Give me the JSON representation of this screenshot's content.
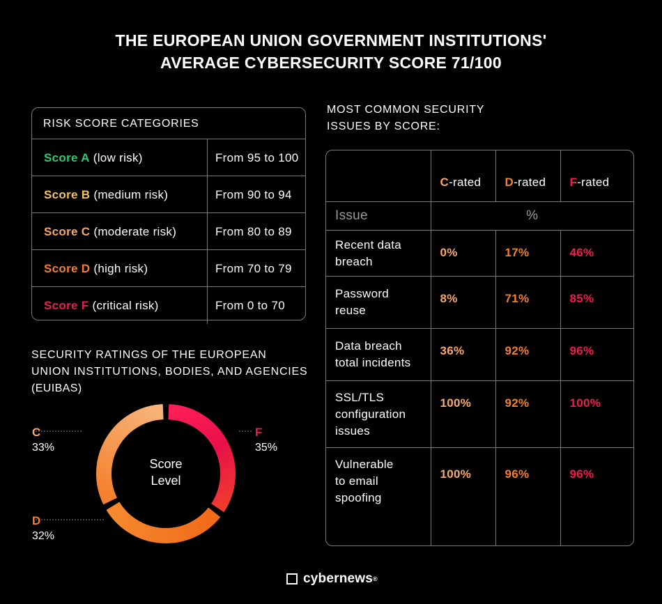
{
  "title": {
    "line1": "THE EUROPEAN UNION GOVERNMENT INSTITUTIONS'",
    "line2": "AVERAGE CYBERSECURITY SCORE 71/100"
  },
  "colors": {
    "A": "#2ecc71",
    "B": "#f6c35a",
    "C": "#f7a86a",
    "D": "#f57f2c",
    "F": "#ee1c4f"
  },
  "risk_table": {
    "heading": "RISK SCORE CATEGORIES",
    "rows": [
      {
        "grade": "Score A",
        "desc": " (low risk)",
        "range": "From 95 to 100"
      },
      {
        "grade": "Score B",
        "desc": " (medium risk)",
        "range": "From 90 to 94"
      },
      {
        "grade": "Score C",
        "desc": " (moderate risk)",
        "range": "From 80 to 89"
      },
      {
        "grade": "Score D",
        "desc": " (high risk)",
        "range": "From 70 to 79"
      },
      {
        "grade": "Score F",
        "desc": " (critical risk)",
        "range": "From 0 to 70"
      }
    ]
  },
  "donut_section": {
    "heading_line1": "SECURITY RATINGS OF THE EUROPEAN",
    "heading_line2": "UNION INSTITUTIONS, BODIES, AND AGENCIES",
    "heading_line3": "(EUIBAS)",
    "center_line1": "Score",
    "center_line2": "Level"
  },
  "chart_data": [
    {
      "type": "pie",
      "title": "SECURITY RATINGS OF THE EUROPEAN UNION INSTITUTIONS, BODIES, AND AGENCIES (EUIBAS)",
      "categories": [
        "F",
        "D",
        "C"
      ],
      "values": [
        35,
        32,
        33
      ],
      "labels": [
        "35%",
        "32%",
        "33%"
      ]
    },
    {
      "type": "table",
      "title": "MOST COMMON SECURITY ISSUES BY SCORE:",
      "columns": [
        "C-rated",
        "D-rated",
        "F-rated"
      ],
      "unit": "%",
      "rows": [
        {
          "issue": "Recent data breach",
          "values": [
            0,
            17,
            46
          ]
        },
        {
          "issue": "Password reuse",
          "values": [
            8,
            71,
            85
          ]
        },
        {
          "issue": "Data breach total incidents",
          "values": [
            36,
            92,
            96
          ]
        },
        {
          "issue": "SSL/TLS configuration issues",
          "values": [
            100,
            92,
            100
          ]
        },
        {
          "issue": "Vulnerable to email spoofing",
          "values": [
            100,
            96,
            96
          ]
        }
      ]
    }
  ],
  "issues_table": {
    "heading_line1": "MOST COMMON SECURITY",
    "heading_line2": "ISSUES BY SCORE:",
    "col_letters": [
      "C",
      "D",
      "F"
    ],
    "col_suffix": "-rated",
    "issue_label": "Issue",
    "pct_label": "%",
    "rows": [
      {
        "l1": "Recent data",
        "l2": "breach",
        "l3": "",
        "c": "0%",
        "d": "17%",
        "f": "46%"
      },
      {
        "l1": "Password",
        "l2": "reuse",
        "l3": "",
        "c": "8%",
        "d": "71%",
        "f": "85%"
      },
      {
        "l1": "Data breach",
        "l2": "total incidents",
        "l3": "",
        "c": "36%",
        "d": "92%",
        "f": "96%"
      },
      {
        "l1": "SSL/TLS",
        "l2": "configuration",
        "l3": "issues",
        "c": "100%",
        "d": "92%",
        "f": "100%"
      },
      {
        "l1": "Vulnerable",
        "l2": "to email",
        "l3": "spoofing",
        "c": "100%",
        "d": "96%",
        "f": "96%"
      }
    ]
  },
  "brand": {
    "name": "cybernews",
    "mark": "®"
  }
}
